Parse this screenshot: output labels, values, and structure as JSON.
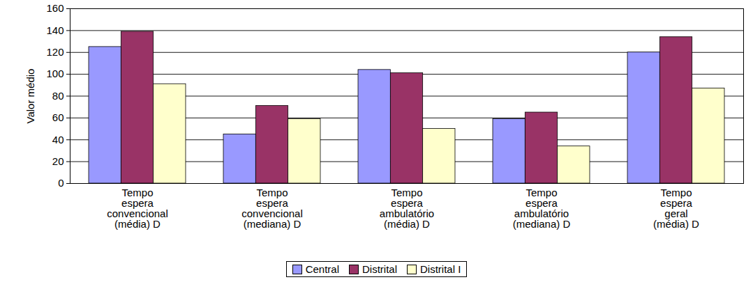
{
  "chart_data": {
    "type": "bar",
    "y_label": "Valor médio",
    "categories": [
      "Tempo espera convencional (média) D",
      "Tempo espera convencional (mediana) D",
      "Tempo espera ambulatório (média) D",
      "Tempo espera ambulatório (mediana) D",
      "Tempo espera geral (média) D"
    ],
    "series": [
      {
        "name": "Central",
        "color": "#9999ff",
        "values": [
          125,
          45,
          104,
          59,
          120
        ]
      },
      {
        "name": "Distrital",
        "color": "#993366",
        "values": [
          139,
          71,
          101,
          65,
          134
        ]
      },
      {
        "name": "Distrital I",
        "color": "#ffffcc",
        "values": [
          91,
          59,
          50,
          34,
          87
        ]
      }
    ],
    "ylim": [
      0,
      160
    ],
    "yticks": [
      0,
      20,
      40,
      60,
      80,
      100,
      120,
      140,
      160
    ],
    "grid": true,
    "legend": "bottom"
  }
}
